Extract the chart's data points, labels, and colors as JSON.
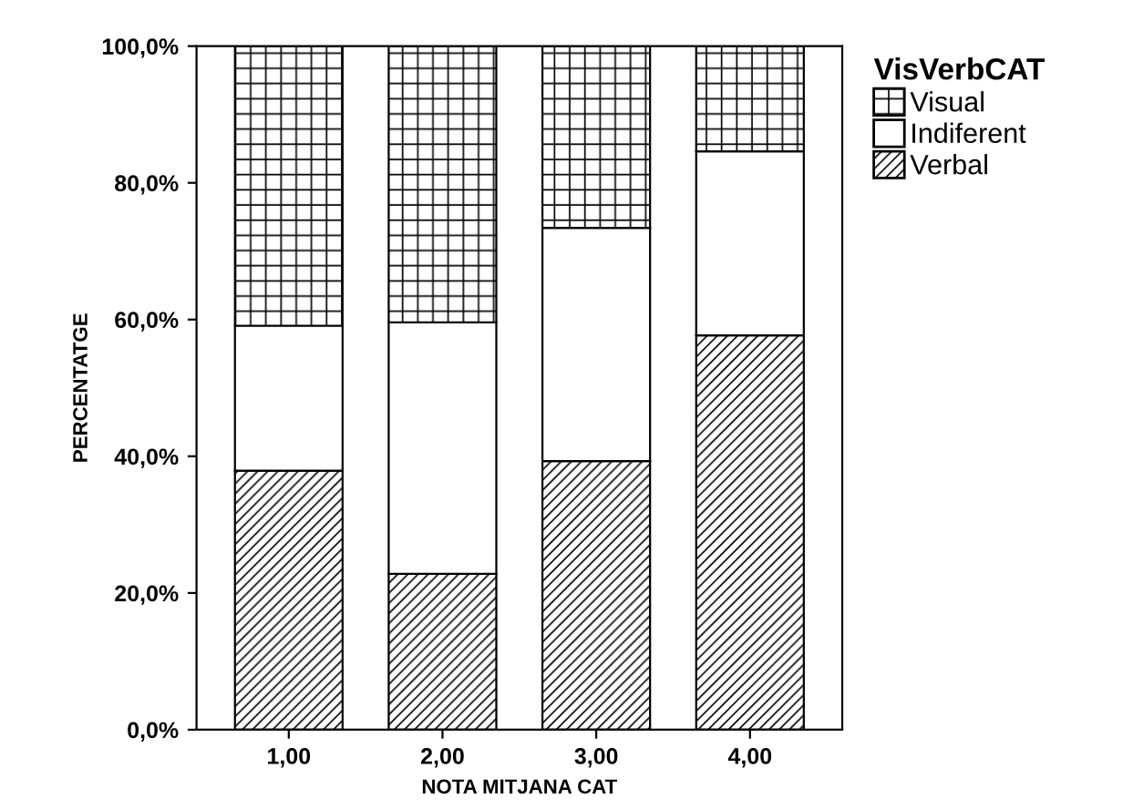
{
  "chart_data": {
    "type": "bar",
    "stacked": true,
    "xlabel": "NOTA MITJANA CAT",
    "ylabel": "PERCENTATGE",
    "legend_title": "VisVerbCAT",
    "legend": "top right",
    "categories": [
      "1,00",
      "2,00",
      "3,00",
      "4,00"
    ],
    "series": [
      {
        "name": "Verbal",
        "color": "#000000",
        "values": [
          37.9,
          22.8,
          39.3,
          57.7
        ]
      },
      {
        "name": "Indiferent",
        "color": "#ffffff",
        "values": [
          21.2,
          36.8,
          34.1,
          26.9
        ]
      },
      {
        "name": "Visual",
        "color": "#000000",
        "values": [
          40.9,
          40.4,
          26.6,
          15.4
        ]
      }
    ],
    "ylim": [
      0,
      100
    ],
    "yticks": [
      {
        "value": 0,
        "label": "0,0%"
      },
      {
        "value": 20,
        "label": "20,0%"
      },
      {
        "value": 40,
        "label": "40,0%"
      },
      {
        "value": 60,
        "label": "60,0%"
      },
      {
        "value": 80,
        "label": "80,0%"
      },
      {
        "value": 100,
        "label": "100,0%"
      }
    ],
    "grid": false
  }
}
